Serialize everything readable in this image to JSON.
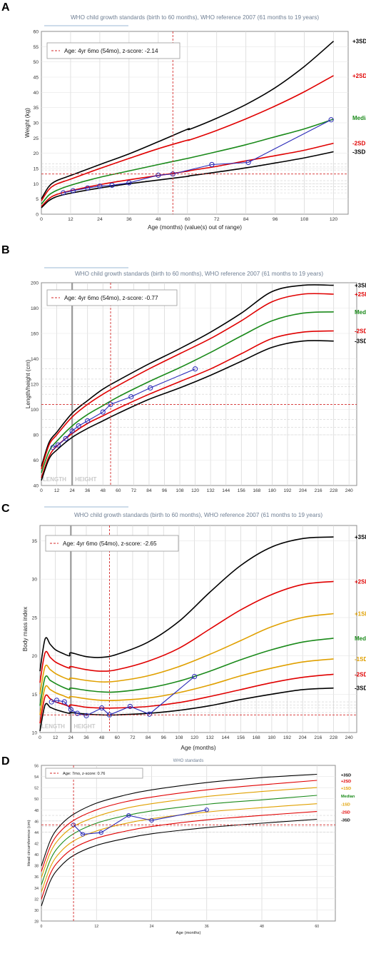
{
  "chart_data": [
    {
      "panel": "A",
      "type": "line",
      "title": "WHO child growth standards (birth to 60 months), WHO reference 2007 (61 months to 19 years)",
      "xlabel": "Age (months) (value(s) out of range)",
      "ylabel": "Weight (kg)",
      "xlim": [
        0,
        126
      ],
      "ylim": [
        0,
        60
      ],
      "xticks": [
        0,
        12,
        24,
        36,
        48,
        60,
        72,
        84,
        96,
        108,
        120
      ],
      "yticks": [
        0,
        5,
        10,
        15,
        20,
        25,
        30,
        35,
        40,
        45,
        50,
        55,
        60
      ],
      "legend": "Age: 4yr 6mo (54mo), z-score: -2.14",
      "marker": {
        "x": 54,
        "y": 13.2
      },
      "series": [
        {
          "name": "+3SD",
          "color": "#000000",
          "x": [
            0,
            3,
            6,
            12,
            24,
            36,
            48,
            60,
            61,
            72,
            84,
            96,
            108,
            120
          ],
          "values": [
            5.0,
            9.0,
            10.9,
            12.7,
            16.3,
            19.8,
            23.8,
            27.9,
            27.9,
            31.5,
            36.0,
            41.5,
            48.5,
            56.8
          ]
        },
        {
          "name": "+2SD",
          "color": "#e00000",
          "x": [
            0,
            3,
            6,
            12,
            24,
            36,
            48,
            60,
            61,
            72,
            84,
            96,
            108,
            120
          ],
          "values": [
            4.4,
            8.0,
            9.8,
            11.5,
            15.0,
            18.3,
            21.5,
            24.3,
            24.4,
            27.5,
            31.3,
            35.5,
            40.2,
            45.5
          ]
        },
        {
          "name": "Median",
          "color": "#1a8a1a",
          "x": [
            0,
            3,
            6,
            12,
            24,
            36,
            48,
            60,
            61,
            72,
            84,
            96,
            108,
            120
          ],
          "values": [
            3.3,
            6.2,
            7.7,
            9.5,
            12.1,
            14.2,
            16.3,
            18.3,
            18.5,
            20.5,
            22.8,
            25.4,
            28.0,
            31.2
          ]
        },
        {
          "name": "-2SD",
          "color": "#e00000",
          "x": [
            0,
            3,
            6,
            12,
            24,
            36,
            48,
            60,
            61,
            72,
            84,
            96,
            108,
            120
          ],
          "values": [
            2.5,
            5.0,
            6.4,
            7.7,
            9.7,
            11.3,
            12.7,
            14.1,
            14.3,
            15.7,
            17.5,
            19.2,
            21.0,
            23.3
          ]
        },
        {
          "name": "-3SD",
          "color": "#000000",
          "x": [
            0,
            3,
            6,
            12,
            24,
            36,
            48,
            60,
            61,
            72,
            84,
            96,
            108,
            120
          ],
          "values": [
            2.1,
            4.4,
            5.7,
            6.9,
            8.6,
            10.0,
            11.2,
            12.4,
            12.6,
            13.8,
            15.2,
            16.8,
            18.5,
            20.5
          ]
        },
        {
          "name": "",
          "color": "#2a2ab8",
          "points": true,
          "x": [
            9,
            13,
            19,
            24,
            29,
            36,
            48,
            54,
            70,
            85,
            119
          ],
          "values": [
            7.0,
            7.7,
            8.6,
            9.2,
            9.5,
            10.3,
            12.8,
            13.2,
            16.3,
            17.0,
            31.0
          ]
        }
      ]
    },
    {
      "panel": "B",
      "type": "line",
      "title": "WHO child growth standards (birth to 60 months), WHO reference 2007 (61 months to 19 years)",
      "xlabel": "Age (months)",
      "ylabel": "Length/height (cm)",
      "xlim": [
        0,
        246
      ],
      "ylim": [
        40,
        200
      ],
      "xticks": [
        0,
        12,
        24,
        36,
        48,
        60,
        72,
        84,
        96,
        108,
        120,
        132,
        144,
        156,
        168,
        180,
        192,
        204,
        216,
        228,
        240
      ],
      "yticks": [
        40,
        60,
        80,
        100,
        120,
        140,
        160,
        180,
        200
      ],
      "legend": "Age: 4yr 6mo (54mo), z-score: -0.77",
      "region_labels": [
        "LENGTH",
        "HEIGHT"
      ],
      "marker": {
        "x": 54,
        "y": 104
      },
      "series": [
        {
          "name": "+3SD",
          "color": "#000000",
          "x": [
            0,
            6,
            12,
            24,
            36,
            48,
            60,
            84,
            108,
            132,
            156,
            180,
            204,
            228
          ],
          "values": [
            55,
            74,
            82,
            97,
            107,
            116,
            123,
            136,
            148,
            161,
            176,
            193,
            198,
            198
          ]
        },
        {
          "name": "+2SD",
          "color": "#e00000",
          "x": [
            0,
            6,
            12,
            24,
            36,
            48,
            60,
            84,
            108,
            132,
            156,
            180,
            204,
            228
          ],
          "values": [
            53,
            72,
            80,
            94,
            104,
            112,
            119,
            132,
            144,
            156,
            170,
            185,
            191,
            191
          ]
        },
        {
          "name": "Median",
          "color": "#1a8a1a",
          "x": [
            0,
            6,
            12,
            24,
            36,
            48,
            60,
            84,
            108,
            132,
            156,
            180,
            204,
            228
          ],
          "values": [
            50,
            67,
            75,
            87,
            96,
            103,
            110,
            122,
            133,
            145,
            158,
            170,
            176,
            177
          ]
        },
        {
          "name": "-2SD",
          "color": "#e00000",
          "x": [
            0,
            6,
            12,
            24,
            36,
            48,
            60,
            84,
            108,
            132,
            156,
            180,
            204,
            228
          ],
          "values": [
            46,
            63,
            71,
            81,
            89,
            95,
            101,
            112,
            122,
            132,
            144,
            156,
            161,
            162
          ]
        },
        {
          "name": "-3SD",
          "color": "#000000",
          "x": [
            0,
            6,
            12,
            24,
            36,
            48,
            60,
            84,
            108,
            132,
            156,
            180,
            204,
            228
          ],
          "values": [
            44,
            61,
            68,
            78,
            85,
            91,
            97,
            108,
            117,
            127,
            138,
            149,
            154,
            154
          ]
        },
        {
          "name": "",
          "color": "#2a2ab8",
          "points": true,
          "x": [
            9,
            13,
            19,
            24,
            29,
            36,
            48,
            54,
            70,
            85,
            120
          ],
          "values": [
            70,
            72,
            77,
            83,
            87,
            91,
            98,
            104,
            110,
            117,
            132
          ]
        }
      ]
    },
    {
      "panel": "C",
      "type": "line",
      "title": "WHO child growth standards (birth to 60 months), WHO reference 2007 (61 months to 19 years)",
      "xlabel": "Age (months)",
      "ylabel": "Body mass index",
      "xlim": [
        0,
        246
      ],
      "ylim": [
        10,
        37
      ],
      "xticks": [
        0,
        12,
        24,
        36,
        48,
        60,
        72,
        84,
        96,
        108,
        120,
        132,
        144,
        156,
        168,
        180,
        192,
        204,
        216,
        228,
        240
      ],
      "yticks": [
        10,
        15,
        20,
        25,
        30,
        35
      ],
      "legend": "Age: 4yr 6mo (54mo), z-score: -2.65",
      "region_labels": [
        "LENGTH",
        "HEIGHT"
      ],
      "marker": {
        "x": 54,
        "y": 12.3
      },
      "series": [
        {
          "name": "+3SD",
          "color": "#000000",
          "x": [
            0,
            4,
            8,
            12,
            18,
            23,
            24,
            36,
            48,
            60,
            84,
            108,
            132,
            156,
            180,
            204,
            228
          ],
          "values": [
            18.0,
            22.2,
            21.5,
            20.8,
            20.3,
            20.0,
            20.4,
            19.9,
            19.8,
            20.2,
            21.8,
            24.5,
            28.3,
            31.8,
            34.2,
            35.3,
            35.5
          ]
        },
        {
          "name": "+2SD",
          "color": "#e00000",
          "x": [
            0,
            4,
            8,
            12,
            18,
            23,
            24,
            36,
            48,
            60,
            84,
            108,
            132,
            156,
            180,
            204,
            228
          ],
          "values": [
            16.5,
            20.4,
            19.8,
            19.2,
            18.7,
            18.4,
            18.6,
            18.2,
            18.0,
            18.2,
            19.3,
            21.0,
            23.5,
            26.0,
            28.0,
            29.3,
            29.7
          ]
        },
        {
          "name": "+1SD",
          "color": "#e0a000",
          "x": [
            0,
            4,
            8,
            12,
            18,
            23,
            24,
            36,
            48,
            60,
            84,
            108,
            132,
            156,
            180,
            204,
            228
          ],
          "values": [
            15.0,
            18.6,
            18.2,
            17.7,
            17.2,
            16.9,
            17.1,
            16.8,
            16.6,
            16.7,
            17.4,
            18.6,
            20.2,
            22.0,
            23.8,
            25.0,
            25.5
          ]
        },
        {
          "name": "Median",
          "color": "#1a8a1a",
          "x": [
            0,
            4,
            8,
            12,
            18,
            23,
            24,
            36,
            48,
            60,
            84,
            108,
            132,
            156,
            180,
            204,
            228
          ],
          "values": [
            13.5,
            17.2,
            16.8,
            16.4,
            15.9,
            15.6,
            15.8,
            15.5,
            15.3,
            15.3,
            15.8,
            16.7,
            18.0,
            19.5,
            20.8,
            21.8,
            22.3
          ]
        },
        {
          "name": "-1SD",
          "color": "#e0a000",
          "x": [
            0,
            4,
            8,
            12,
            18,
            23,
            24,
            36,
            48,
            60,
            84,
            108,
            132,
            156,
            180,
            204,
            228
          ],
          "values": [
            12.3,
            15.9,
            15.6,
            15.2,
            14.8,
            14.5,
            14.7,
            14.4,
            14.2,
            14.2,
            14.5,
            15.2,
            16.2,
            17.4,
            18.4,
            19.2,
            19.6
          ]
        },
        {
          "name": "-2SD",
          "color": "#e00000",
          "x": [
            0,
            4,
            8,
            12,
            18,
            23,
            24,
            36,
            48,
            60,
            84,
            108,
            132,
            156,
            180,
            204,
            228
          ],
          "values": [
            11.2,
            14.7,
            14.4,
            14.0,
            13.7,
            13.4,
            13.6,
            13.3,
            13.2,
            13.2,
            13.4,
            13.9,
            14.7,
            15.6,
            16.5,
            17.2,
            17.6
          ]
        },
        {
          "name": "-3SD",
          "color": "#000000",
          "x": [
            0,
            4,
            8,
            12,
            18,
            23,
            24,
            36,
            48,
            60,
            84,
            108,
            132,
            156,
            180,
            204,
            228
          ],
          "values": [
            10.2,
            13.6,
            13.3,
            13.0,
            12.7,
            12.5,
            12.6,
            12.4,
            12.3,
            12.3,
            12.5,
            12.9,
            13.5,
            14.3,
            15.0,
            15.6,
            15.8
          ]
        },
        {
          "name": "",
          "color": "#2a2ab8",
          "points": true,
          "x": [
            9,
            13,
            19,
            24,
            29,
            36,
            48,
            54,
            70,
            85,
            120
          ],
          "values": [
            14.0,
            14.2,
            14.0,
            13.0,
            12.5,
            12.2,
            13.2,
            12.3,
            13.4,
            12.4,
            17.3
          ]
        }
      ]
    },
    {
      "panel": "D",
      "type": "line",
      "title": "WHO standards",
      "xlabel": "Age (months)",
      "ylabel": "Head circumference (cm)",
      "xlim": [
        0,
        64
      ],
      "ylim": [
        28,
        56
      ],
      "xticks": [
        0,
        12,
        24,
        36,
        48,
        60
      ],
      "yticks": [
        28,
        30,
        32,
        34,
        36,
        38,
        40,
        42,
        44,
        46,
        48,
        50,
        52,
        54,
        56
      ],
      "legend": "Age: 7mo, z-score: 0.76",
      "marker": {
        "x": 7,
        "y": 45.3
      },
      "series": [
        {
          "name": "+3SD",
          "color": "#000000",
          "x": [
            0,
            2,
            4,
            7,
            12,
            18,
            24,
            36,
            48,
            60
          ],
          "values": [
            37.9,
            42.6,
            45.1,
            47.2,
            49.2,
            50.6,
            51.6,
            52.9,
            53.8,
            54.4
          ]
        },
        {
          "name": "+2SD",
          "color": "#e00000",
          "x": [
            0,
            2,
            4,
            7,
            12,
            18,
            24,
            36,
            48,
            60
          ],
          "values": [
            36.9,
            41.5,
            44.0,
            46.1,
            48.0,
            49.4,
            50.3,
            51.6,
            52.5,
            53.3
          ]
        },
        {
          "name": "+1SD",
          "color": "#e0a000",
          "x": [
            0,
            2,
            4,
            7,
            12,
            18,
            24,
            36,
            48,
            60
          ],
          "values": [
            35.8,
            40.4,
            42.9,
            45.0,
            46.8,
            48.2,
            49.1,
            50.4,
            51.3,
            52.0
          ]
        },
        {
          "name": "Median",
          "color": "#1a8a1a",
          "x": [
            0,
            2,
            4,
            7,
            12,
            18,
            24,
            36,
            48,
            60
          ],
          "values": [
            34.5,
            39.1,
            41.6,
            43.7,
            45.6,
            46.9,
            47.8,
            49.0,
            49.8,
            50.6
          ]
        },
        {
          "name": "-1SD",
          "color": "#e0a000",
          "x": [
            0,
            2,
            4,
            7,
            12,
            18,
            24,
            36,
            48,
            60
          ],
          "values": [
            33.2,
            37.8,
            40.3,
            42.4,
            44.2,
            45.5,
            46.4,
            47.6,
            48.4,
            49.1
          ]
        },
        {
          "name": "-2SD",
          "color": "#e00000",
          "x": [
            0,
            2,
            4,
            7,
            12,
            18,
            24,
            36,
            48,
            60
          ],
          "values": [
            31.9,
            36.6,
            39.0,
            41.1,
            42.9,
            44.1,
            45.0,
            46.2,
            47.0,
            47.7
          ]
        },
        {
          "name": "-3SD",
          "color": "#000000",
          "x": [
            0,
            2,
            4,
            7,
            12,
            18,
            24,
            36,
            48,
            60
          ],
          "values": [
            30.7,
            35.3,
            37.7,
            39.8,
            41.6,
            42.8,
            43.7,
            44.8,
            45.6,
            46.3
          ]
        },
        {
          "name": "",
          "color": "#2a2ab8",
          "points": true,
          "x": [
            7,
            9,
            13,
            19,
            24,
            36
          ],
          "values": [
            45.3,
            43.6,
            43.9,
            47.0,
            46.1,
            48.0
          ]
        }
      ]
    }
  ]
}
